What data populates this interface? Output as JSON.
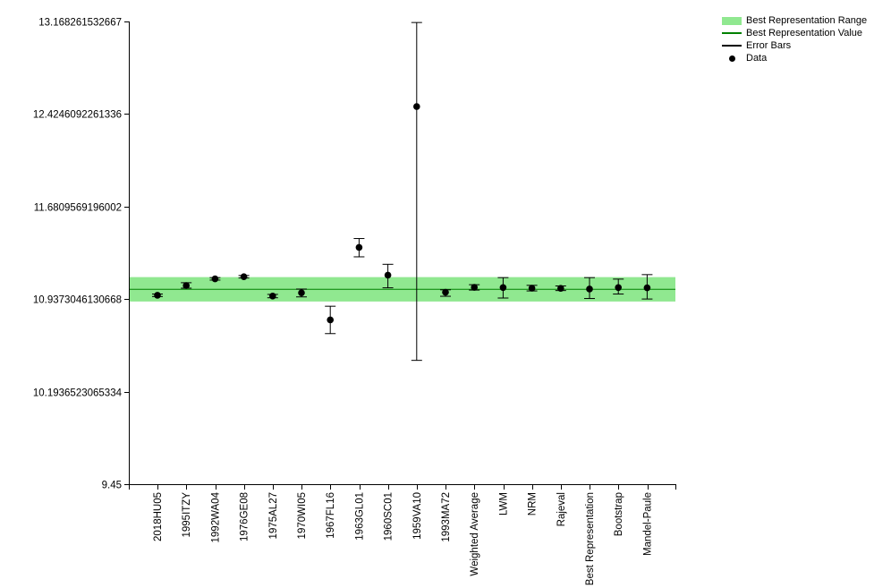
{
  "chart_data": {
    "type": "scatter",
    "categories": [
      "2018HU05",
      "1995ITZY",
      "1992WA04",
      "1976GE08",
      "1975AL27",
      "1970WI05",
      "1967FL16",
      "1963GL01",
      "1960SC01",
      "1959VA10",
      "1993MA72",
      "Weighted Average",
      "LWM",
      "NRM",
      "Rajeval",
      "Best Representation",
      "Bootstrap",
      "Mandel-Paule"
    ],
    "series": [
      {
        "name": "Data",
        "values": [
          10.968,
          11.046,
          11.1,
          11.117,
          10.962,
          10.988,
          10.77,
          11.353,
          11.13,
          12.485,
          10.992,
          11.032,
          11.03,
          11.025,
          11.024,
          11.018,
          11.03,
          11.028
        ],
        "error_low": [
          10.958,
          11.025,
          11.09,
          11.107,
          10.948,
          10.955,
          10.66,
          11.277,
          11.028,
          10.445,
          10.96,
          11.01,
          10.946,
          11.003,
          11.006,
          10.942,
          10.978,
          10.938
        ],
        "error_high": [
          10.978,
          11.069,
          11.11,
          11.127,
          10.975,
          11.018,
          10.88,
          11.424,
          11.217,
          13.16,
          11.012,
          11.053,
          11.11,
          11.048,
          11.043,
          11.11,
          11.098,
          11.134
        ]
      }
    ],
    "best_value": 11.016,
    "best_range": [
      10.918,
      11.114
    ],
    "y_ticks": [
      "13.168261532667",
      "12.4246092261336",
      "11.6809569196002",
      "10.9373046130668",
      "10.1936523065334",
      "9.45"
    ],
    "ylim": [
      9.45,
      13.168261532667
    ],
    "grid": false,
    "legend_position": "top-right",
    "legend": [
      "Best Representation Range",
      "Best Representation Value",
      "Error Bars",
      "Data"
    ],
    "colors": {
      "range": "#90e890",
      "value_line": "#008000",
      "error_bars": "#000000",
      "points": "#000000"
    }
  }
}
